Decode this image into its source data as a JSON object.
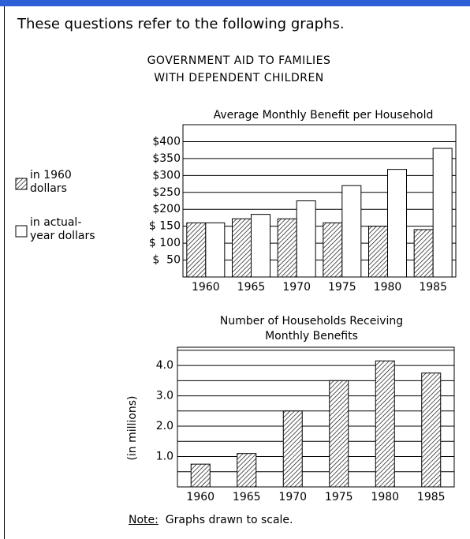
{
  "intro": "These questions refer to the following graphs.",
  "heading": "GOVERNMENT AID TO FAMILIES\nWITH DEPENDENT CHILDREN",
  "note": {
    "label": "Note:",
    "text": "Graphs drawn to scale."
  },
  "chart_data": [
    {
      "type": "bar",
      "title": "Average Monthly Benefit per Household",
      "categories": [
        "1960",
        "1965",
        "1970",
        "1975",
        "1980",
        "1985"
      ],
      "series": [
        {
          "name": "in 1960\ndollars",
          "pattern": "hatched",
          "color": "#ffffff",
          "values": [
            160,
            172,
            172,
            160,
            150,
            140
          ]
        },
        {
          "name": "in actual-\nyear dollars",
          "pattern": "none",
          "color": "#ffffff",
          "values": [
            160,
            185,
            225,
            270,
            318,
            380
          ]
        }
      ],
      "ylim": [
        0,
        450
      ],
      "yticks": [
        {
          "value": 50,
          "label": "$  50"
        },
        {
          "value": 100,
          "label": "$ 100"
        },
        {
          "value": 150,
          "label": "$ 150"
        },
        {
          "value": 200,
          "label": "$200"
        },
        {
          "value": 250,
          "label": "$250"
        },
        {
          "value": 300,
          "label": "$300"
        },
        {
          "value": 350,
          "label": "$350"
        },
        {
          "value": 400,
          "label": "$400"
        }
      ],
      "grid": true,
      "legend": "left"
    },
    {
      "type": "bar",
      "title": "Number of Households Receiving\nMonthly Benefits",
      "y_label": "(in millions)",
      "categories": [
        "1960",
        "1965",
        "1970",
        "1975",
        "1980",
        "1985"
      ],
      "values": [
        0.75,
        1.1,
        2.5,
        3.5,
        4.15,
        3.75
      ],
      "pattern": "hatched",
      "color": "#ffffff",
      "ylim": [
        0,
        4.6
      ],
      "yticks": [
        {
          "value": 1,
          "label": "1.0"
        },
        {
          "value": 2,
          "label": "2.0"
        },
        {
          "value": 3,
          "label": "3.0"
        },
        {
          "value": 4,
          "label": "4.0"
        }
      ],
      "minor_gridlines": [
        0.5,
        1.5,
        2.5,
        3.5,
        4.5
      ],
      "grid": true
    }
  ]
}
